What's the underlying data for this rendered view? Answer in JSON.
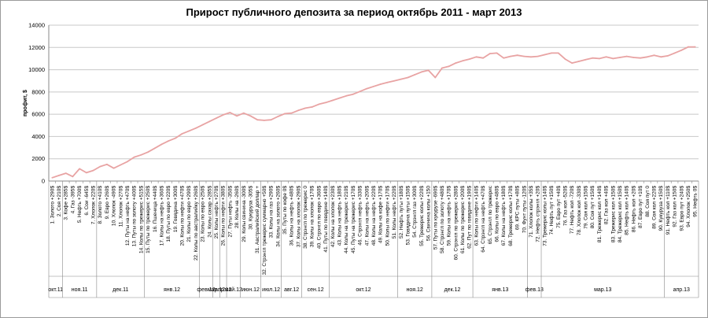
{
  "chart_data": {
    "type": "line",
    "title": "Прирост публичного депозита за период октябрь 2011 - март 2013",
    "xlabel": "",
    "ylabel": "профит, $",
    "ylim": [
      0,
      14000
    ],
    "yticks": [
      0,
      2000,
      4000,
      6000,
      8000,
      10000,
      12000,
      14000
    ],
    "grid": true,
    "legend": "none",
    "line_color": "#e8a3a3",
    "categories": [
      "1. Золото +290$",
      "2. Соя +210$",
      "3. Кофе +285$",
      "4. Газ -395$",
      "5. Нефть +700$",
      "6. Сои -645$",
      "7. Хлопок +220$",
      "8. Золото +410$",
      "9. Евро +260$",
      "10. Хлопок -490$",
      "11. Хлопок +270$",
      "12. Путы на нефть +470$",
      "13. Путы по золоту +400$",
      "14. Колы по трежерис +515$",
      "15. Путы по трежерис +250$",
      "16. Пшеница +440$",
      "17. Колы на нефть +360$",
      "18. Путы по евро +220$",
      "19. Говядина +300$",
      "20. Колы по нефти +470$",
      "21. Колы по евро +290$",
      "22. Колы по австралийку +260$",
      "23. Колы по евро +250$",
      "24. Колы сахар +285$",
      "25. Колы нефть +270$",
      "26. Колы по нефти +380$",
      "27. Путы нефть -350$",
      "28. Колы на -260$",
      "29. Колы свинина -300$",
      "30. Кукуруза -305$",
      "31. Австралийский доллар +",
      "32. Стрэнгл трежерис суммарно +50$",
      "33. Колы на газ +290$",
      "34. Колы на золото +260$",
      "35. Путы по кофе 0$",
      "36. Колы на нефть +480$",
      "37. Колы на хлопок +290$",
      "38. Стрэнгл по трежерис 0",
      "39. Колы на хлопок +170$",
      "40. Стрэнгл по евро +360$",
      "41. Путы по говядине +140$",
      "42. Колы на хлопок +230$",
      "43. Колы на нефть +180$",
      "44. Колы на трежерис +210$",
      "45. Путы на трежерис +170$",
      "46. Стрэнгл нефть +330$",
      "47. Колы на нефть +200$",
      "48. Колы на нефть +220$",
      "49. Колы на кофе +170$",
      "50. Колы по нефти +170$",
      "51. Колы нефть +220$",
      "52. Нефть путы +180$",
      "53. Говядина путы +150$",
      "54. Стрэнгл газ +300$",
      "55. Трежерис колы +220$",
      "56. Свинина колы +150",
      "57. Путы по кукурузе -690$",
      "58. Стрэнгл по золоту +480$",
      "59. Колы на нефть +170$",
      "60. Стрэнгл по трежерис +280$",
      "61. Колы по трежерис +200$",
      "62. Пут по говядине +190$",
      "63. Колы по нефти +140$",
      "64. Стрэнгл на нефть +470$",
      "65. Стрэнгл по трежерис",
      "66. Колы по евро +480$",
      "67. Колы на нефть +180$",
      "68. Трежерис колы +170$",
      "69. КРС путы +80$",
      "70. Фунт путы -120$",
      "71. Хлопок колы +35$",
      "72. Нефть стрэнгл +20$",
      "73. Трежерис колы +140$",
      "74. Нефть пут +150$",
      "75. Евро пут +40$",
      "76. Газ кол -520$",
      "77. Нефть кол -720$",
      "78. Хлопок кол -330$",
      "79. Соя кол +150$",
      "80. Соя пут +150$",
      "81. Трежерис кол +140$",
      "82. Газ кол +40$",
      "83. Трежерис кол +150$",
      "84. Трежерис кол +150$",
      "85. Нефть кол +140$",
      "86. Нефть кол +20$",
      "87. Евро пут +10$",
      "88. Соя пут 0",
      "89. Соя кол +220$",
      "90. Кукуруза +150$",
      "91. Нефть кол +110$",
      "92. Газ кол +150$",
      "93. Евро пут +240$",
      "94. Хлопок +250$",
      "95. Нефть 0$"
    ],
    "series": [
      {
        "values": [
          300,
          500,
          700,
          400,
          1100,
          750,
          950,
          1300,
          1500,
          1150,
          1450,
          1750,
          2150,
          2350,
          2600,
          2950,
          3300,
          3600,
          3850,
          4250,
          4500,
          4750,
          5050,
          5350,
          5650,
          5950,
          6150,
          5850,
          6100,
          5850,
          5500,
          5450,
          5500,
          5800,
          6050,
          6100,
          6350,
          6550,
          6650,
          6900,
          7050,
          7250,
          7450,
          7650,
          7800,
          8050,
          8300,
          8500,
          8700,
          8850,
          9000,
          9150,
          9300,
          9550,
          9800,
          9950,
          9300,
          10150,
          10300,
          10600,
          10800,
          10950,
          11150,
          11050,
          11450,
          11500,
          11050,
          11200,
          11300,
          11200,
          11150,
          11200,
          11350,
          11500,
          11500,
          10950,
          10600,
          10750,
          10900,
          11050,
          11000,
          11150,
          11000,
          11100,
          11200,
          11100,
          11050,
          11150,
          11300,
          11150,
          11250,
          11500,
          11750,
          12050,
          12050
        ]
      }
    ],
    "month_groups": [
      {
        "label": "окт.11",
        "from": 1,
        "to": 2
      },
      {
        "label": "ноя.11",
        "from": 3,
        "to": 7
      },
      {
        "label": "дек.11",
        "from": 8,
        "to": 14
      },
      {
        "label": "янв.12",
        "from": 15,
        "to": 22
      },
      {
        "label": "фев.12",
        "from": 23,
        "to": 24
      },
      {
        "label": "мар.12",
        "from": 25,
        "to": 25
      },
      {
        "label": "апр.12",
        "from": 26,
        "to": 26
      },
      {
        "label": "май.12",
        "from": 27,
        "to": 28
      },
      {
        "label": "июн.12",
        "from": 29,
        "to": 31
      },
      {
        "label": "июл.12",
        "from": 32,
        "to": 34
      },
      {
        "label": "авг.12",
        "from": 35,
        "to": 37
      },
      {
        "label": "сен.12",
        "from": 38,
        "to": 41
      },
      {
        "label": "окт.12",
        "from": 42,
        "to": 51
      },
      {
        "label": "ноя.12",
        "from": 52,
        "to": 56
      },
      {
        "label": "дек.12",
        "from": 57,
        "to": 62
      },
      {
        "label": "янв.13",
        "from": 63,
        "to": 70
      },
      {
        "label": "фев.13",
        "from": 71,
        "to": 72
      },
      {
        "label": "мар.13",
        "from": 73,
        "to": 90
      },
      {
        "label": "апр.13",
        "from": 91,
        "to": 95
      }
    ]
  }
}
